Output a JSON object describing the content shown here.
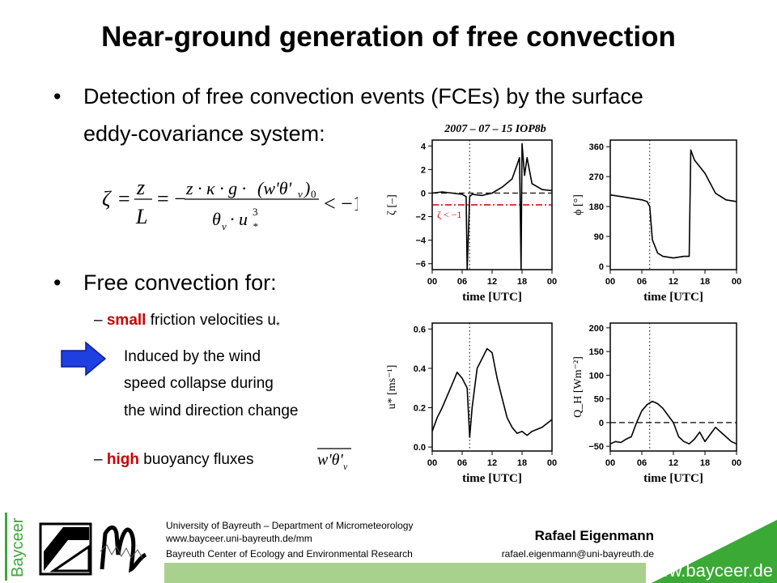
{
  "title": "Near-ground generation of free convection",
  "bullet1": {
    "line1": "Detection of free convection events (FCEs) by the surface",
    "line2": "eddy-covariance system:"
  },
  "bullet2": "Free convection for:",
  "sub1": {
    "dash": "–",
    "emph": "small",
    "rest": " friction velocities u",
    "subscript": "*"
  },
  "arrow_text": {
    "line1": "Induced by the wind",
    "line2": "speed collapse during",
    "line3": "the wind direction change"
  },
  "sub2": {
    "dash": "–",
    "emph": "high",
    "rest": " buoyancy fluxes"
  },
  "chart_data": [
    {
      "type": "line",
      "title": "2007 – 07 – 15 IOP8b",
      "ylabel": "ζ [–]",
      "xlabel": "time [UTC]",
      "x_ticks": [
        "00",
        "06",
        "12",
        "18",
        "00"
      ],
      "y_ticks": [
        "−6",
        "−4",
        "−2",
        "0",
        "2",
        "4"
      ],
      "ylim": [
        -6.5,
        4.5
      ],
      "annotation": "ζ < −1",
      "reference_lines": [
        0,
        -1
      ],
      "event_line_time_h": 7.5,
      "series": [
        {
          "x": [
            0,
            2,
            4,
            6,
            6.8,
            7,
            7.5,
            8,
            10,
            12,
            14,
            16,
            17.5,
            17.8,
            18,
            18.5,
            19,
            20,
            22,
            24
          ],
          "y": [
            0,
            0.1,
            0,
            -0.1,
            -0.3,
            -6.5,
            -0.3,
            -0.1,
            -0.2,
            0,
            0.5,
            1.2,
            3,
            -6.5,
            4.2,
            1.5,
            3,
            0.8,
            0.3,
            0.2
          ]
        }
      ]
    },
    {
      "type": "line",
      "ylabel": "ϕ [°]",
      "xlabel": "time [UTC]",
      "x_ticks": [
        "00",
        "06",
        "12",
        "18",
        "00"
      ],
      "y_ticks": [
        "0",
        "90",
        "180",
        "270",
        "360"
      ],
      "ylim": [
        -10,
        380
      ],
      "event_line_time_h": 7.5,
      "series": [
        {
          "x": [
            0,
            2,
            4,
            6,
            7,
            7.5,
            8,
            9,
            10,
            12,
            14,
            15,
            15.3,
            16,
            18,
            20,
            22,
            24
          ],
          "y": [
            215,
            210,
            205,
            200,
            195,
            180,
            80,
            40,
            30,
            25,
            30,
            30,
            350,
            320,
            280,
            220,
            200,
            195
          ]
        }
      ]
    },
    {
      "type": "line",
      "ylabel": "u* [ms⁻¹]",
      "xlabel": "time [UTC]",
      "x_ticks": [
        "00",
        "06",
        "12",
        "18",
        "00"
      ],
      "y_ticks": [
        "0.0",
        "0.2",
        "0.4",
        "0.6"
      ],
      "ylim": [
        -0.02,
        0.63
      ],
      "event_line_time_h": 7.5,
      "series": [
        {
          "x": [
            0,
            1,
            2,
            3,
            4,
            5,
            6,
            7,
            7.5,
            8,
            9,
            10,
            11,
            12,
            13,
            14,
            15,
            16,
            17,
            18,
            19,
            20,
            22,
            24
          ],
          "y": [
            0.08,
            0.15,
            0.2,
            0.26,
            0.32,
            0.38,
            0.35,
            0.3,
            0.05,
            0.2,
            0.4,
            0.45,
            0.5,
            0.48,
            0.35,
            0.25,
            0.15,
            0.1,
            0.07,
            0.08,
            0.06,
            0.08,
            0.1,
            0.14
          ]
        }
      ]
    },
    {
      "type": "line",
      "ylabel": "Q_H [Wm⁻²]",
      "xlabel": "time [UTC]",
      "x_ticks": [
        "00",
        "06",
        "12",
        "18",
        "00"
      ],
      "y_ticks": [
        "−50",
        "0",
        "50",
        "100",
        "150",
        "200"
      ],
      "ylim": [
        -60,
        210
      ],
      "reference_lines": [
        0
      ],
      "event_line_time_h": 7.5,
      "series": [
        {
          "x": [
            0,
            1,
            2,
            3,
            4,
            5,
            6,
            7,
            8,
            9,
            10,
            11,
            12,
            13,
            14,
            15,
            16,
            17,
            18,
            19,
            20,
            21,
            22,
            23,
            24
          ],
          "y": [
            -45,
            -40,
            -42,
            -35,
            -30,
            0,
            25,
            38,
            45,
            40,
            30,
            15,
            0,
            -30,
            -40,
            -45,
            -35,
            -20,
            -40,
            -25,
            -10,
            -20,
            -30,
            -40,
            -45
          ]
        }
      ]
    }
  ],
  "footer": {
    "university": "University of Bayreuth – Department of Micrometeorology",
    "url": "www.bayceer.uni-bayreuth.de/mm",
    "center": "Bayreuth Center of Ecology and Environmental Research",
    "name": "Rafael Eigenmann",
    "email": "rafael.eigenmann@uni-bayreuth.de",
    "website": "www.bayceer.de",
    "side_logo": "Bayceer"
  },
  "colors": {
    "emph_red": "#cc0000",
    "arrow_blue": "#1f3fe0",
    "footer_green": "#a9d18e",
    "logo_green": "#3aa935"
  }
}
